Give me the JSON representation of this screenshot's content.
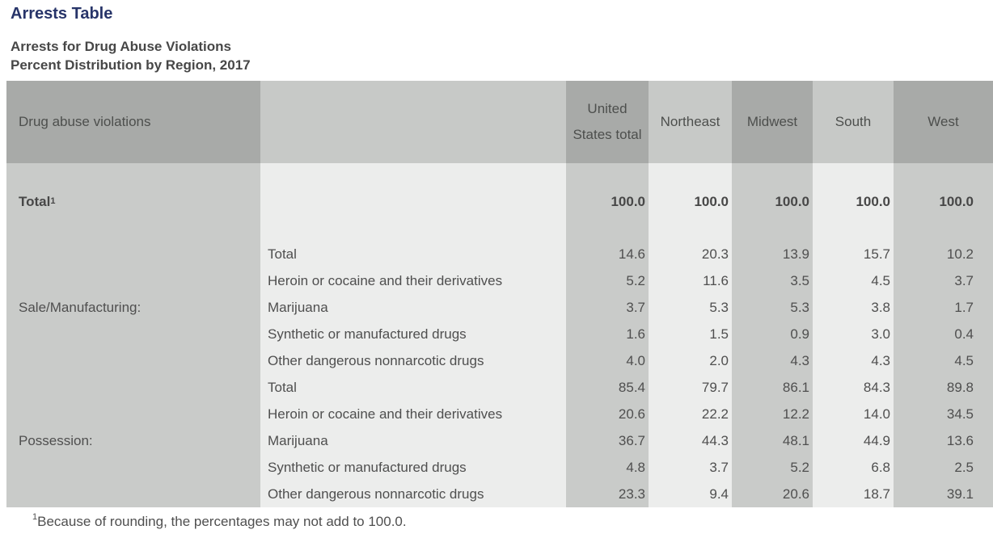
{
  "page": {
    "title": "Arrests Table"
  },
  "chart_data": {
    "type": "table",
    "title": "Arrests for Drug Abuse Violations",
    "subtitle": "Percent Distribution by Region, 2017",
    "row_header": "Drug abuse violations",
    "columns": [
      "United States total",
      "Northeast",
      "Midwest",
      "South",
      "West"
    ],
    "total_row": {
      "label": "Total",
      "footnote_marker": "1",
      "values": [
        "100.0",
        "100.0",
        "100.0",
        "100.0",
        "100.0"
      ]
    },
    "groups": [
      {
        "label": "Sale/Manufacturing:",
        "rows": [
          {
            "label": "Total",
            "values": [
              "14.6",
              "20.3",
              "13.9",
              "15.7",
              "10.2"
            ]
          },
          {
            "label": "Heroin or cocaine and their derivatives",
            "values": [
              "5.2",
              "11.6",
              "3.5",
              "4.5",
              "3.7"
            ]
          },
          {
            "label": "Marijuana",
            "values": [
              "3.7",
              "5.3",
              "5.3",
              "3.8",
              "1.7"
            ]
          },
          {
            "label": "Synthetic or manufactured drugs",
            "values": [
              "1.6",
              "1.5",
              "0.9",
              "3.0",
              "0.4"
            ]
          },
          {
            "label": "Other dangerous nonnarcotic drugs",
            "values": [
              "4.0",
              "2.0",
              "4.3",
              "4.3",
              "4.5"
            ]
          }
        ]
      },
      {
        "label": "Possession:",
        "rows": [
          {
            "label": "Total",
            "values": [
              "85.4",
              "79.7",
              "86.1",
              "84.3",
              "89.8"
            ]
          },
          {
            "label": "Heroin or cocaine and their derivatives",
            "values": [
              "20.6",
              "22.2",
              "12.2",
              "14.0",
              "34.5"
            ]
          },
          {
            "label": "Marijuana",
            "values": [
              "36.7",
              "44.3",
              "48.1",
              "44.9",
              "13.6"
            ]
          },
          {
            "label": "Synthetic or manufactured drugs",
            "values": [
              "4.8",
              "3.7",
              "5.2",
              "6.8",
              "2.5"
            ]
          },
          {
            "label": "Other dangerous nonnarcotic drugs",
            "values": [
              "23.3",
              "9.4",
              "20.6",
              "18.7",
              "39.1"
            ]
          }
        ]
      }
    ],
    "footnote_marker": "1",
    "footnote": "Because of rounding, the percentages may not add to 100.0.",
    "layout": {
      "grid": false,
      "legend": "none"
    }
  },
  "colors": {
    "title-navy": "#273469",
    "text-gray": "#4f4f4f",
    "header-dark": "#a8aaa8",
    "header-light": "#c7c9c7",
    "body-dark": "#c9cbc9",
    "body-light": "#ecedec"
  }
}
